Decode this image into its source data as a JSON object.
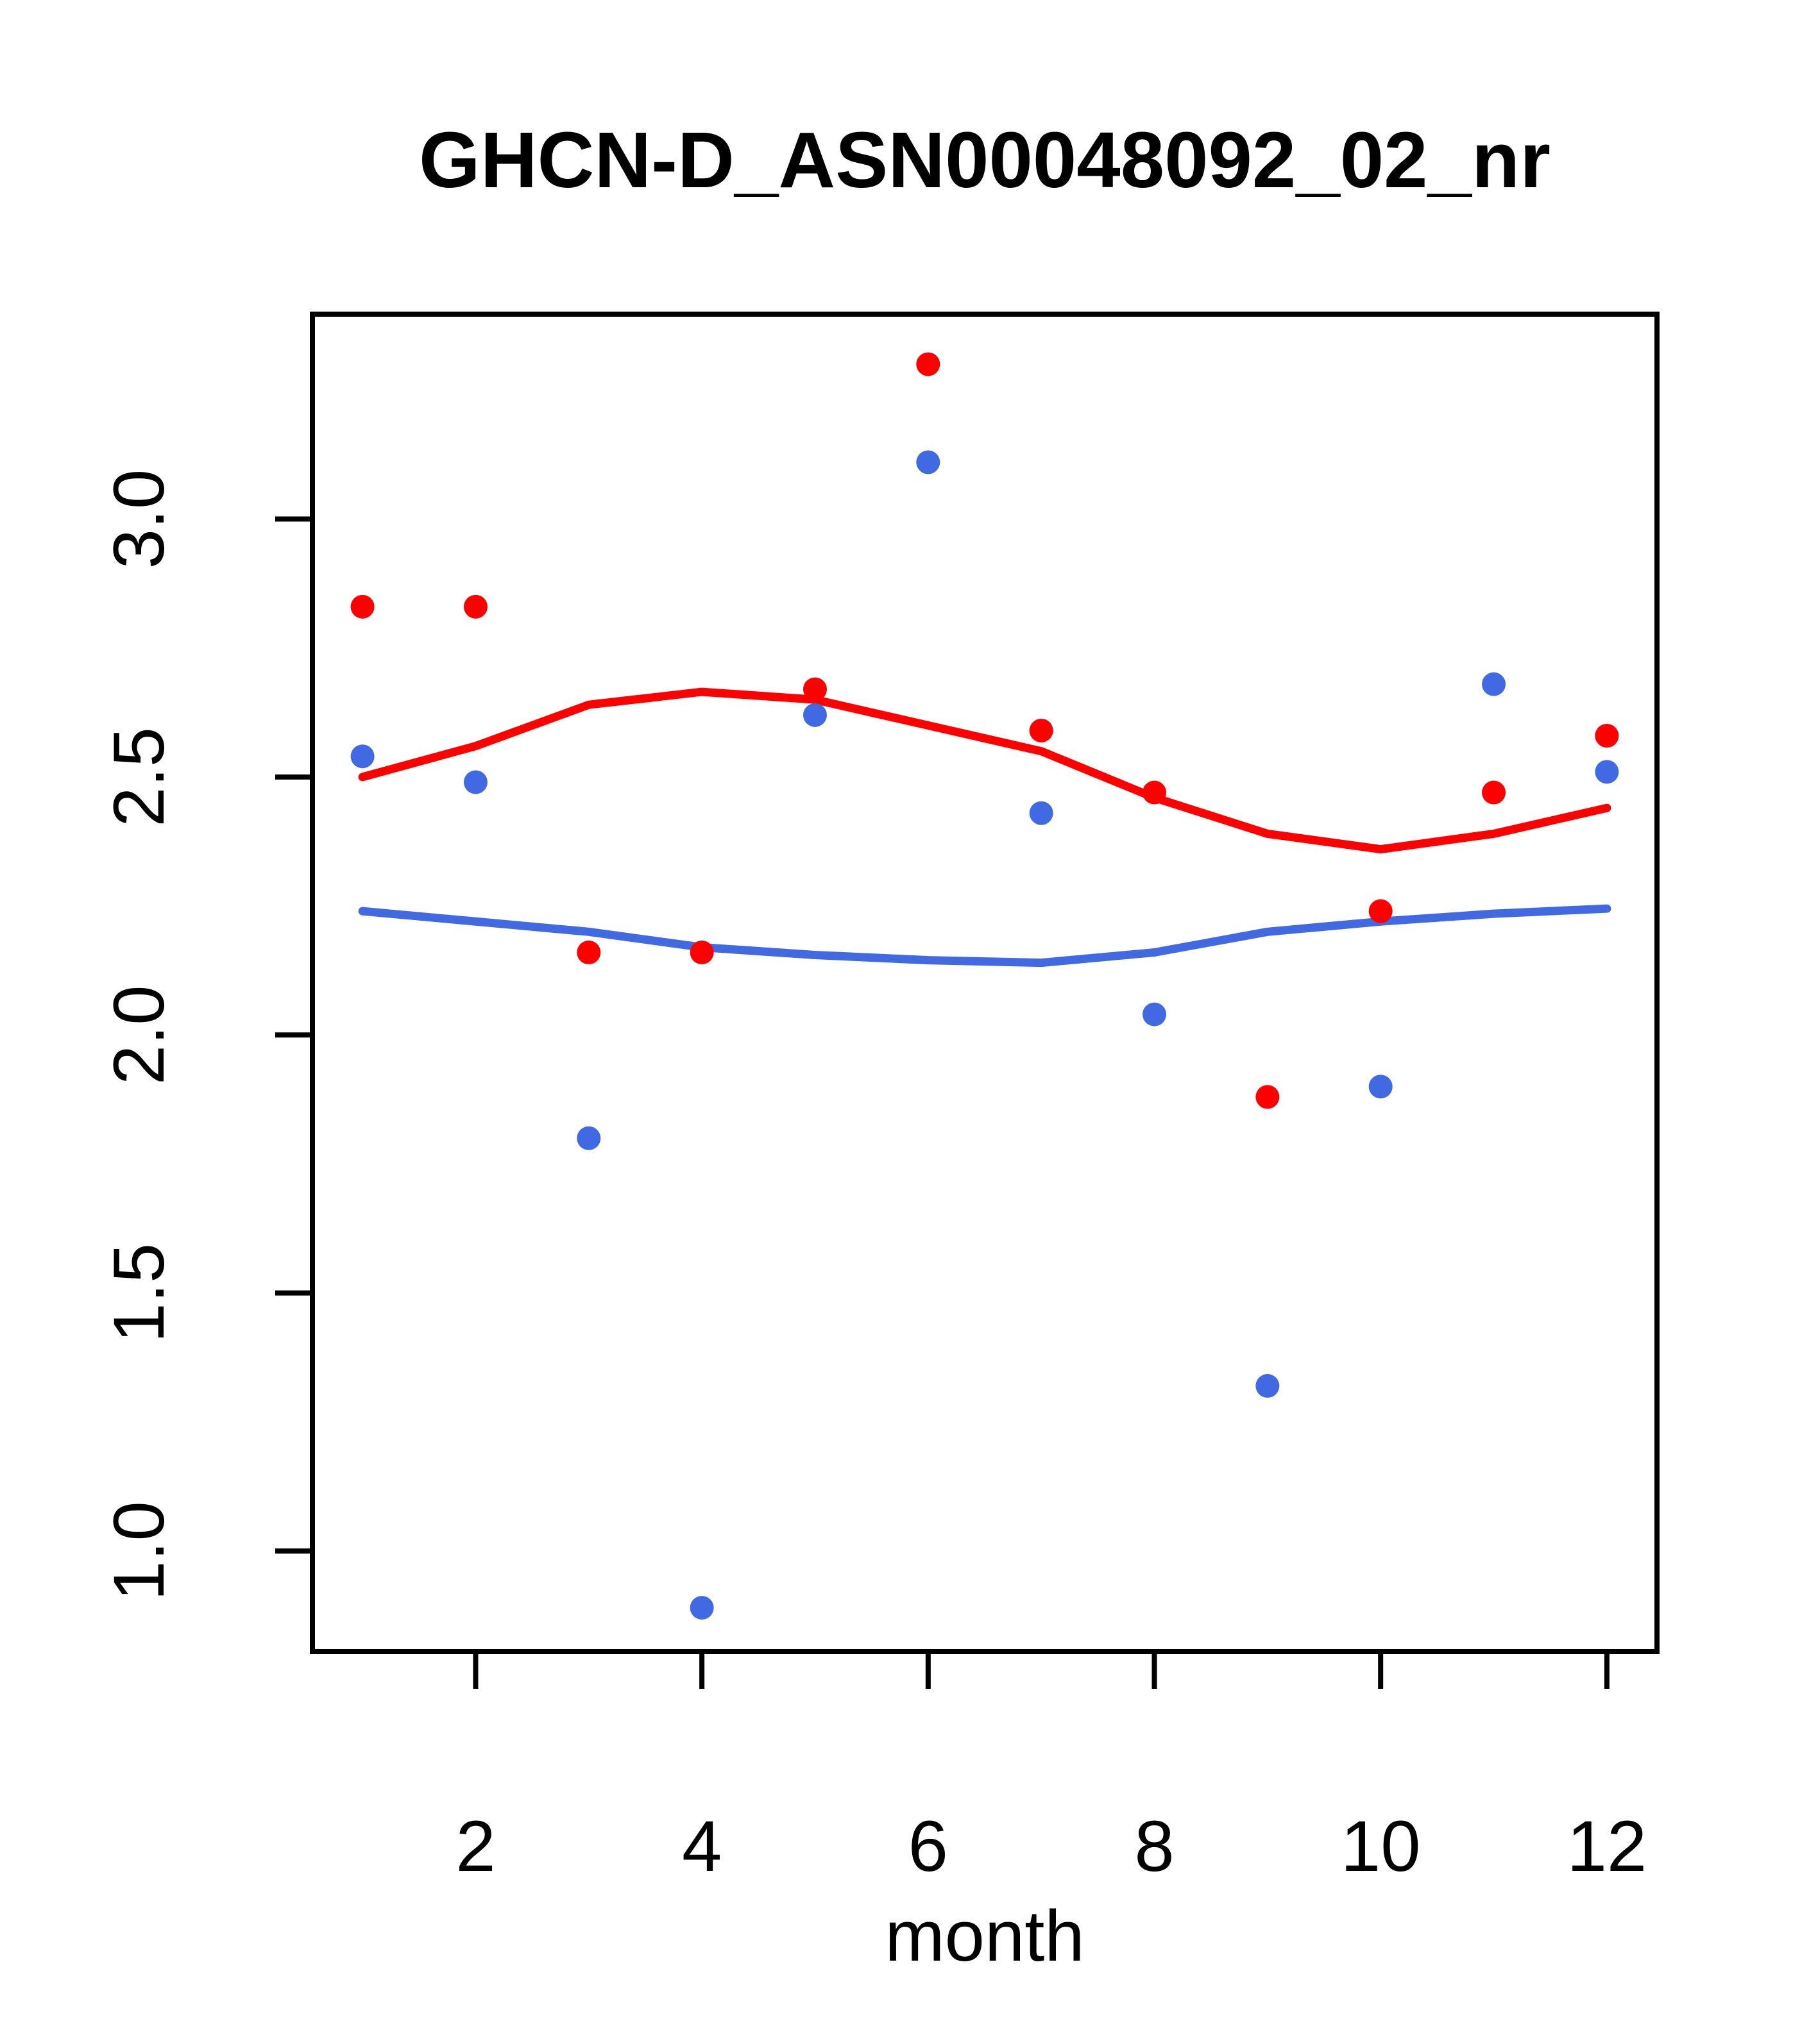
{
  "chart_data": {
    "type": "scatter",
    "title": "GHCN-D_ASN00048092_02_nr",
    "xlabel": "month",
    "ylabel": "",
    "grid": false,
    "legend": "none",
    "xlim": [
      0.557,
      12.443
    ],
    "ylim": [
      0.805,
      3.397
    ],
    "x_ticks": [
      {
        "label": "2",
        "value": 2
      },
      {
        "label": "4",
        "value": 4
      },
      {
        "label": "6",
        "value": 6
      },
      {
        "label": "8",
        "value": 8
      },
      {
        "label": "10",
        "value": 10
      },
      {
        "label": "12",
        "value": 12
      }
    ],
    "y_ticks": [
      {
        "label": "1.0",
        "value": 1.0
      },
      {
        "label": "1.5",
        "value": 1.5
      },
      {
        "label": "2.0",
        "value": 2.0
      },
      {
        "label": "2.5",
        "value": 2.5
      },
      {
        "label": "3.0",
        "value": 3.0
      }
    ],
    "x": [
      1,
      2,
      3,
      4,
      5,
      6,
      7,
      8,
      9,
      10,
      11,
      12
    ],
    "series": [
      {
        "name": "red-points",
        "kind": "points",
        "color": "#FF0000",
        "values": [
          2.83,
          2.83,
          2.16,
          2.16,
          2.67,
          3.3,
          2.59,
          2.47,
          1.88,
          2.24,
          2.47,
          2.58
        ]
      },
      {
        "name": "blue-points",
        "kind": "points",
        "color": "#4169E1",
        "values": [
          2.54,
          2.49,
          1.8,
          0.89,
          2.62,
          3.11,
          2.43,
          2.04,
          1.32,
          1.9,
          2.68,
          2.51
        ]
      },
      {
        "name": "red-smooth-line",
        "kind": "line",
        "color": "#FF0000",
        "values": [
          2.5,
          2.56,
          2.64,
          2.665,
          2.65,
          2.6,
          2.55,
          2.46,
          2.39,
          2.36,
          2.39,
          2.44
        ]
      },
      {
        "name": "blue-smooth-line",
        "kind": "line",
        "color": "#4169E1",
        "values": [
          2.24,
          2.22,
          2.2,
          2.17,
          2.155,
          2.145,
          2.14,
          2.16,
          2.2,
          2.22,
          2.235,
          2.245
        ]
      }
    ],
    "colors": {
      "red_series": "#FF0000",
      "blue_series": "#4169E1",
      "axis": "#000000",
      "background": "#FFFFFF"
    }
  }
}
